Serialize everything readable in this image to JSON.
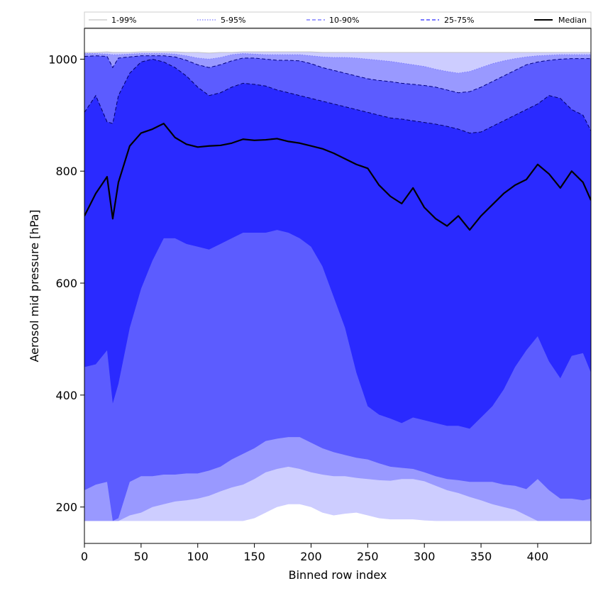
{
  "chart_data": {
    "type": "area",
    "title": "",
    "xlabel": "Binned row index",
    "ylabel": "Aerosol mid pressure [hPa]",
    "xlim": [
      0,
      447
    ],
    "ylim": [
      135,
      1055
    ],
    "xticks": [
      0,
      50,
      100,
      150,
      200,
      250,
      300,
      350,
      400
    ],
    "yticks": [
      200,
      400,
      600,
      800,
      1000
    ],
    "grid": false,
    "legend_position": "top",
    "baseline": 175,
    "x": [
      0,
      10,
      20,
      25,
      30,
      40,
      50,
      60,
      70,
      80,
      90,
      100,
      110,
      120,
      130,
      140,
      150,
      160,
      170,
      180,
      190,
      200,
      210,
      220,
      230,
      240,
      250,
      260,
      270,
      280,
      290,
      300,
      310,
      320,
      330,
      340,
      350,
      360,
      370,
      380,
      390,
      400,
      410,
      420,
      430,
      440,
      447
    ],
    "bands": [
      {
        "name": "1-99%",
        "color": "#cdcdff",
        "line_color": "#c4c4c4",
        "upper": [
          1012,
          1012,
          1013,
          1012,
          1012,
          1012,
          1013,
          1013,
          1013,
          1013,
          1012,
          1012,
          1011,
          1012,
          1012,
          1013,
          1013,
          1013,
          1013,
          1013,
          1013,
          1013,
          1012,
          1012,
          1012,
          1012,
          1012,
          1012,
          1012,
          1012,
          1012,
          1012,
          1012,
          1012,
          1012,
          1012,
          1012,
          1012,
          1012,
          1012,
          1012,
          1012,
          1012,
          1012,
          1012,
          1012,
          1012
        ],
        "lower": [
          175,
          175,
          175,
          175,
          175,
          175,
          175,
          175,
          175,
          175,
          175,
          175,
          175,
          175,
          175,
          175,
          180,
          190,
          200,
          205,
          205,
          200,
          190,
          185,
          188,
          190,
          185,
          180,
          178,
          178,
          178,
          176,
          175,
          175,
          175,
          175,
          175,
          175,
          175,
          175,
          175,
          175,
          175,
          175,
          175,
          175,
          175
        ]
      },
      {
        "name": "5-95%",
        "color": "#9999ff",
        "line_color": "#7a7aff",
        "upper": [
          1010,
          1010,
          1009,
          1008,
          1008,
          1009,
          1010,
          1010,
          1010,
          1009,
          1006,
          1002,
          1000,
          1003,
          1008,
          1010,
          1009,
          1008,
          1008,
          1008,
          1008,
          1006,
          1004,
          1003,
          1003,
          1002,
          1000,
          998,
          996,
          993,
          990,
          987,
          982,
          978,
          975,
          978,
          985,
          992,
          997,
          1001,
          1004,
          1006,
          1007,
          1008,
          1008,
          1008,
          1008
        ],
        "lower": [
          175,
          175,
          175,
          175,
          175,
          185,
          190,
          200,
          205,
          210,
          212,
          215,
          220,
          228,
          235,
          240,
          250,
          262,
          268,
          272,
          268,
          262,
          258,
          255,
          255,
          252,
          250,
          248,
          247,
          250,
          250,
          246,
          238,
          230,
          225,
          218,
          212,
          205,
          200,
          195,
          185,
          175,
          175,
          175,
          175,
          175,
          175
        ]
      },
      {
        "name": "10-90%",
        "color": "#5c5cff",
        "line_color": "#000080",
        "upper": [
          1005,
          1006,
          1005,
          985,
          1002,
          1004,
          1006,
          1006,
          1006,
          1004,
          998,
          990,
          985,
          990,
          997,
          1002,
          1002,
          1000,
          998,
          998,
          997,
          992,
          985,
          980,
          975,
          970,
          965,
          962,
          960,
          957,
          955,
          953,
          950,
          945,
          940,
          942,
          950,
          960,
          970,
          980,
          990,
          995,
          998,
          1000,
          1001,
          1001,
          1001
        ],
        "lower": [
          230,
          240,
          245,
          175,
          180,
          245,
          255,
          255,
          258,
          258,
          260,
          260,
          265,
          272,
          285,
          295,
          305,
          318,
          322,
          325,
          325,
          315,
          305,
          298,
          293,
          288,
          285,
          278,
          272,
          270,
          268,
          262,
          255,
          250,
          248,
          245,
          245,
          245,
          240,
          238,
          232,
          250,
          230,
          215,
          215,
          212,
          215
        ]
      },
      {
        "name": "25-75%",
        "color": "#2a2aff",
        "line_color": "#000066",
        "upper": [
          905,
          935,
          888,
          885,
          935,
          975,
          995,
          1000,
          995,
          985,
          970,
          950,
          935,
          940,
          950,
          957,
          955,
          952,
          945,
          940,
          935,
          930,
          925,
          920,
          915,
          910,
          905,
          900,
          895,
          893,
          890,
          887,
          884,
          880,
          875,
          868,
          870,
          880,
          890,
          900,
          910,
          920,
          935,
          930,
          910,
          900,
          872
        ],
        "lower": [
          450,
          455,
          480,
          385,
          420,
          520,
          590,
          640,
          680,
          680,
          670,
          665,
          660,
          670,
          680,
          690,
          690,
          690,
          695,
          690,
          680,
          665,
          630,
          575,
          520,
          440,
          380,
          365,
          358,
          350,
          360,
          355,
          350,
          345,
          345,
          340,
          360,
          380,
          410,
          450,
          480,
          505,
          460,
          430,
          470,
          475,
          440
        ]
      }
    ],
    "series": [
      {
        "name": "Median",
        "color": "#000000",
        "x": [
          0,
          10,
          20,
          25,
          30,
          40,
          50,
          60,
          70,
          80,
          90,
          100,
          110,
          120,
          130,
          140,
          150,
          160,
          170,
          180,
          190,
          200,
          210,
          220,
          230,
          240,
          250,
          260,
          270,
          280,
          290,
          300,
          310,
          320,
          330,
          340,
          350,
          360,
          370,
          380,
          390,
          400,
          410,
          420,
          430,
          440,
          447
        ],
        "values": [
          720,
          760,
          790,
          715,
          780,
          845,
          868,
          875,
          885,
          860,
          848,
          843,
          845,
          846,
          850,
          857,
          855,
          856,
          858,
          853,
          850,
          845,
          840,
          832,
          822,
          812,
          805,
          775,
          755,
          742,
          770,
          735,
          715,
          702,
          720,
          695,
          720,
          740,
          760,
          775,
          785,
          812,
          795,
          770,
          800,
          780,
          748
        ]
      }
    ],
    "legend": [
      {
        "label": "1-99%",
        "style": "solid",
        "color": "#c4c4c4"
      },
      {
        "label": "5-95%",
        "style": "dotted",
        "color": "#7a7aff"
      },
      {
        "label": "10-90%",
        "style": "dashed",
        "color": "#6666ff"
      },
      {
        "label": "25-75%",
        "style": "dashed",
        "color": "#2a2aff"
      },
      {
        "label": "Median",
        "style": "solid",
        "color": "#000000"
      }
    ]
  }
}
